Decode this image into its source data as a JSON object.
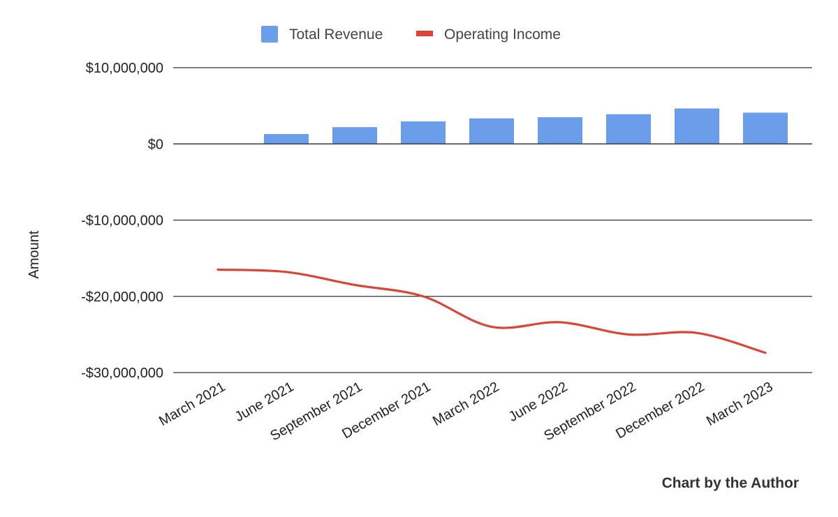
{
  "chart_data": {
    "type": "bar",
    "categories": [
      "March 2021",
      "June 2021",
      "September 2021",
      "December 2021",
      "March 2022",
      "June 2022",
      "September 2022",
      "December 2022",
      "March 2023"
    ],
    "series": [
      {
        "name": "Total Revenue",
        "type": "bar",
        "color": "#6b9eea",
        "values": [
          0,
          1300000,
          2200000,
          2950000,
          3350000,
          3500000,
          3900000,
          4650000,
          4100000
        ]
      },
      {
        "name": "Operating Income",
        "type": "line",
        "color": "#db4437",
        "values": [
          -16500000,
          -16800000,
          -18500000,
          -20000000,
          -24000000,
          -23400000,
          -25000000,
          -24800000,
          -27400000
        ]
      }
    ],
    "title": "",
    "xlabel": "",
    "ylabel": "Amount",
    "ylim": [
      -30000000,
      10000000
    ],
    "yticks": [
      10000000,
      0,
      -10000000,
      -20000000,
      -30000000
    ],
    "ytick_labels": [
      "$10,000,000",
      "$0",
      "-$10,000,000",
      "-$20,000,000",
      "-$30,000,000"
    ],
    "grid": true,
    "legend": "top-center"
  },
  "credit": "Chart by the Author"
}
